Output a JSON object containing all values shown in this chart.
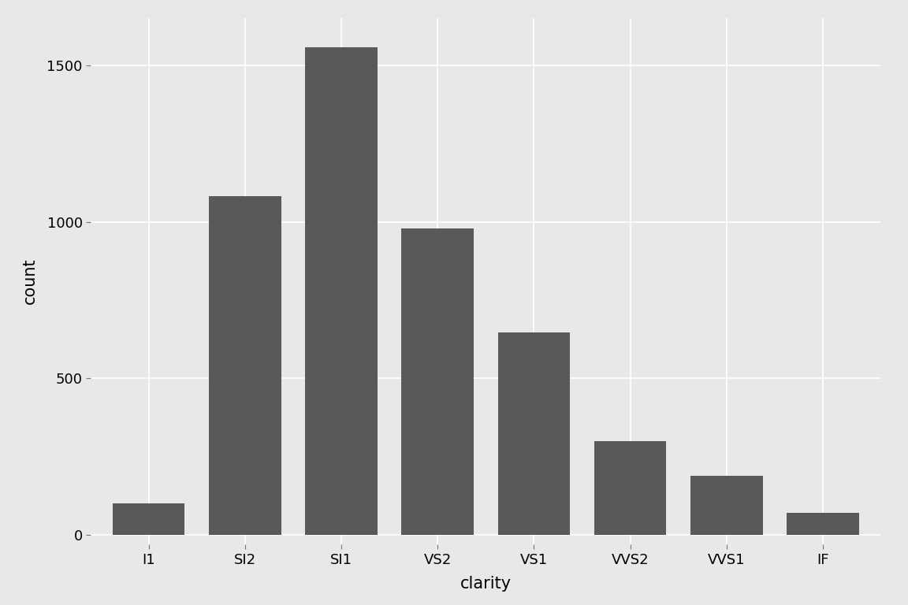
{
  "categories": [
    "I1",
    "SI2",
    "SI1",
    "VS2",
    "VS1",
    "VVS2",
    "VVS1",
    "IF"
  ],
  "values": [
    100,
    1081,
    1558,
    978,
    648,
    301,
    190,
    71
  ],
  "bar_color": "#595959",
  "background_color": "#e8e8e8",
  "panel_background": "#e8e8e8",
  "grid_color": "#ffffff",
  "xlabel": "clarity",
  "ylabel": "count",
  "xlabel_fontsize": 15,
  "ylabel_fontsize": 15,
  "tick_fontsize": 13,
  "ylim": [
    -30,
    1650
  ],
  "yticks": [
    0,
    500,
    1000,
    1500
  ],
  "bar_width": 0.75
}
